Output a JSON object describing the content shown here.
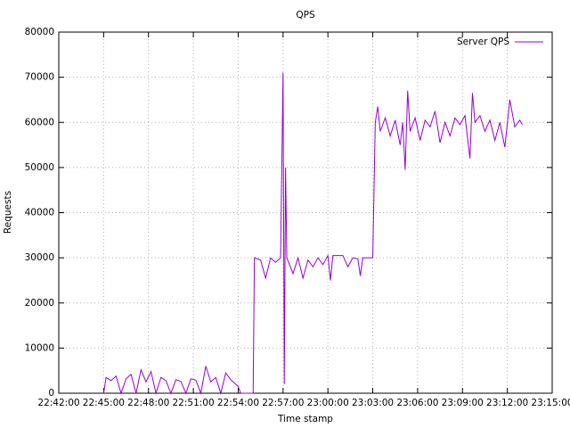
{
  "chart_data": {
    "type": "line",
    "title": "QPS",
    "x_label": "Time stamp",
    "y_label": "Requests",
    "legend_position": "top-right",
    "grid": true,
    "xlim": [
      "22:42:00",
      "23:15:00"
    ],
    "xticks": [
      "22:42:00",
      "22:45:00",
      "22:48:00",
      "22:51:00",
      "22:54:00",
      "22:57:00",
      "23:00:00",
      "23:03:00",
      "23:06:00",
      "23:09:00",
      "23:12:00",
      "23:15:00"
    ],
    "ylim": [
      0,
      80000
    ],
    "yticks": [
      0,
      10000,
      20000,
      30000,
      40000,
      50000,
      60000,
      70000,
      80000
    ],
    "x": [
      "22:45:00",
      "22:45:10",
      "22:45:30",
      "22:45:50",
      "22:46:10",
      "22:46:30",
      "22:46:50",
      "22:47:10",
      "22:47:30",
      "22:47:50",
      "22:48:10",
      "22:48:30",
      "22:48:50",
      "22:49:10",
      "22:49:30",
      "22:49:50",
      "22:50:10",
      "22:50:30",
      "22:50:50",
      "22:51:10",
      "22:51:30",
      "22:51:50",
      "22:52:10",
      "22:52:30",
      "22:52:50",
      "22:53:10",
      "22:53:30",
      "22:53:50",
      "22:54:00",
      "22:54:10",
      "22:55:00",
      "22:55:05",
      "22:55:30",
      "22:55:50",
      "22:56:10",
      "22:56:30",
      "22:56:50",
      "22:57:00",
      "22:57:05",
      "22:57:10",
      "22:57:15",
      "22:57:40",
      "22:58:00",
      "22:58:20",
      "22:58:40",
      "22:59:00",
      "22:59:20",
      "22:59:40",
      "23:00:00",
      "23:00:10",
      "23:00:20",
      "23:01:00",
      "23:01:20",
      "23:01:40",
      "23:02:00",
      "23:02:10",
      "23:02:20",
      "23:03:00",
      "23:03:10",
      "23:03:20",
      "23:03:30",
      "23:03:50",
      "23:04:10",
      "23:04:30",
      "23:04:50",
      "23:05:00",
      "23:05:10",
      "23:05:20",
      "23:05:30",
      "23:05:50",
      "23:06:10",
      "23:06:30",
      "23:06:50",
      "23:07:10",
      "23:07:30",
      "23:07:50",
      "23:08:10",
      "23:08:30",
      "23:08:50",
      "23:09:10",
      "23:09:30",
      "23:09:40",
      "23:09:50",
      "23:10:10",
      "23:10:30",
      "23:10:50",
      "23:11:10",
      "23:11:30",
      "23:11:50",
      "23:12:10",
      "23:12:30",
      "23:12:50",
      "23:13:00"
    ],
    "series": [
      {
        "name": "Server QPS",
        "color": "#9400d3",
        "values": [
          0,
          3500,
          2800,
          3800,
          0,
          3200,
          4200,
          0,
          5200,
          2500,
          4800,
          0,
          3500,
          2800,
          0,
          3000,
          2600,
          0,
          3200,
          2900,
          0,
          6000,
          2500,
          3500,
          0,
          4500,
          3000,
          2000,
          1500,
          0,
          0,
          30000,
          29500,
          25500,
          30000,
          29000,
          30000,
          71000,
          2000,
          50000,
          30000,
          26500,
          30000,
          25500,
          29500,
          28000,
          30000,
          28500,
          30500,
          25000,
          30500,
          30500,
          28000,
          30000,
          29800,
          26000,
          30000,
          30000,
          60000,
          63500,
          58000,
          61000,
          57000,
          60500,
          55000,
          60000,
          49500,
          67000,
          58000,
          61000,
          56000,
          60500,
          59000,
          62500,
          55500,
          60000,
          57000,
          61000,
          59500,
          61500,
          52000,
          66500,
          60000,
          61500,
          58000,
          60500,
          56000,
          60000,
          54500,
          65000,
          59000,
          60500,
          59500
        ]
      }
    ]
  }
}
